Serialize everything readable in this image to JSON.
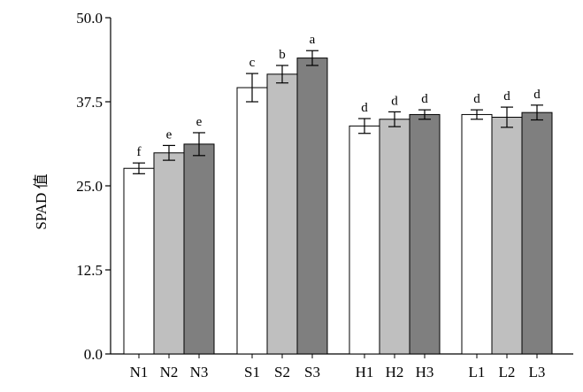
{
  "chart_data": {
    "type": "bar",
    "title": "",
    "xlabel": "",
    "ylabel": "SPAD 值",
    "ylim": [
      0,
      50
    ],
    "yticks": [
      "0.0",
      "12.5",
      "25.0",
      "37.5",
      "50.0"
    ],
    "grid": false,
    "categories": [
      "N1",
      "N2",
      "N3",
      "S1",
      "S2",
      "S3",
      "H1",
      "H2",
      "H3",
      "L1",
      "L2",
      "L3"
    ],
    "values": [
      27.6,
      29.9,
      31.2,
      39.6,
      41.6,
      44.0,
      33.9,
      34.9,
      35.6,
      35.6,
      35.2,
      35.9
    ],
    "errors": [
      0.8,
      1.1,
      1.7,
      2.1,
      1.3,
      1.1,
      1.1,
      1.1,
      0.7,
      0.7,
      1.5,
      1.1
    ],
    "significance": [
      "f",
      "e",
      "e",
      "c",
      "b",
      "a",
      "d",
      "d",
      "d",
      "d",
      "d",
      "d"
    ],
    "bar_fills": [
      "#ffffff",
      "#bfbfbf",
      "#7f7f7f",
      "#ffffff",
      "#bfbfbf",
      "#7f7f7f",
      "#ffffff",
      "#bfbfbf",
      "#7f7f7f",
      "#ffffff",
      "#bfbfbf",
      "#7f7f7f"
    ]
  }
}
